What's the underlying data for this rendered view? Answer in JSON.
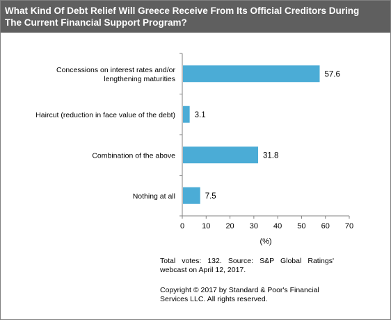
{
  "chart_data": {
    "type": "bar",
    "orientation": "horizontal",
    "title": "What Kind Of Debt Relief Will Greece Receive From Its Official Creditors During The Current Financial Support Program?",
    "title_lines": [
      "What Kind Of Debt Relief Will Greece Receive From Its Official Creditors During",
      "The Current Financial Support Program?"
    ],
    "categories": [
      [
        "Concessions on interest rates and/or",
        "lengthening maturities"
      ],
      [
        "Haircut (reduction in face value of the debt)"
      ],
      [
        "Combination of the above"
      ],
      [
        "Nothing at all"
      ]
    ],
    "values": [
      57.6,
      3.1,
      31.8,
      7.5
    ],
    "value_labels": [
      "57.6",
      "3.1",
      "31.8",
      "7.5"
    ],
    "xlabel": "(%)",
    "xlim": [
      0,
      70
    ],
    "xticks": [
      0,
      10,
      20,
      30,
      40,
      50,
      60,
      70
    ],
    "grid": false,
    "bar_color": "#4bacd6"
  },
  "note": "Total votes: 132. Source: S&P Global Ratings' webcast on April 12, 2017.",
  "copyright": "Copyright © 2017 by Standard & Poor's Financial Services LLC. All rights reserved.",
  "colors": {
    "title_bg": "#5f5f5f",
    "title_text": "#ffffff"
  }
}
